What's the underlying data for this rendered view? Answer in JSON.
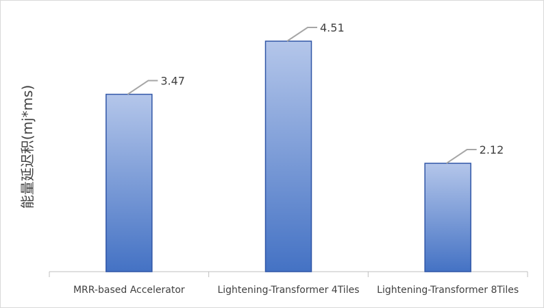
{
  "chart_data": {
    "type": "bar",
    "title": "",
    "xlabel": "",
    "ylabel": "能量延迟积(mj*ms)",
    "categories": [
      "MRR-based Accelerator",
      "Lightening-Transformer 4Tiles",
      "Lightening-Transformer 8Tiles"
    ],
    "values": [
      3.47,
      4.51,
      2.12
    ],
    "data_labels": [
      "3.47",
      "4.51",
      "2.12"
    ],
    "ylim": [
      0,
      5
    ],
    "grid": false,
    "legend": "none",
    "colors": {
      "bar_top": "#b4c6ea",
      "bar_bottom": "#4472c4",
      "bar_border": "#2f55a6",
      "leader_line": "#a6a6a6",
      "axis": "#bfbfbf",
      "text": "#404040"
    }
  }
}
